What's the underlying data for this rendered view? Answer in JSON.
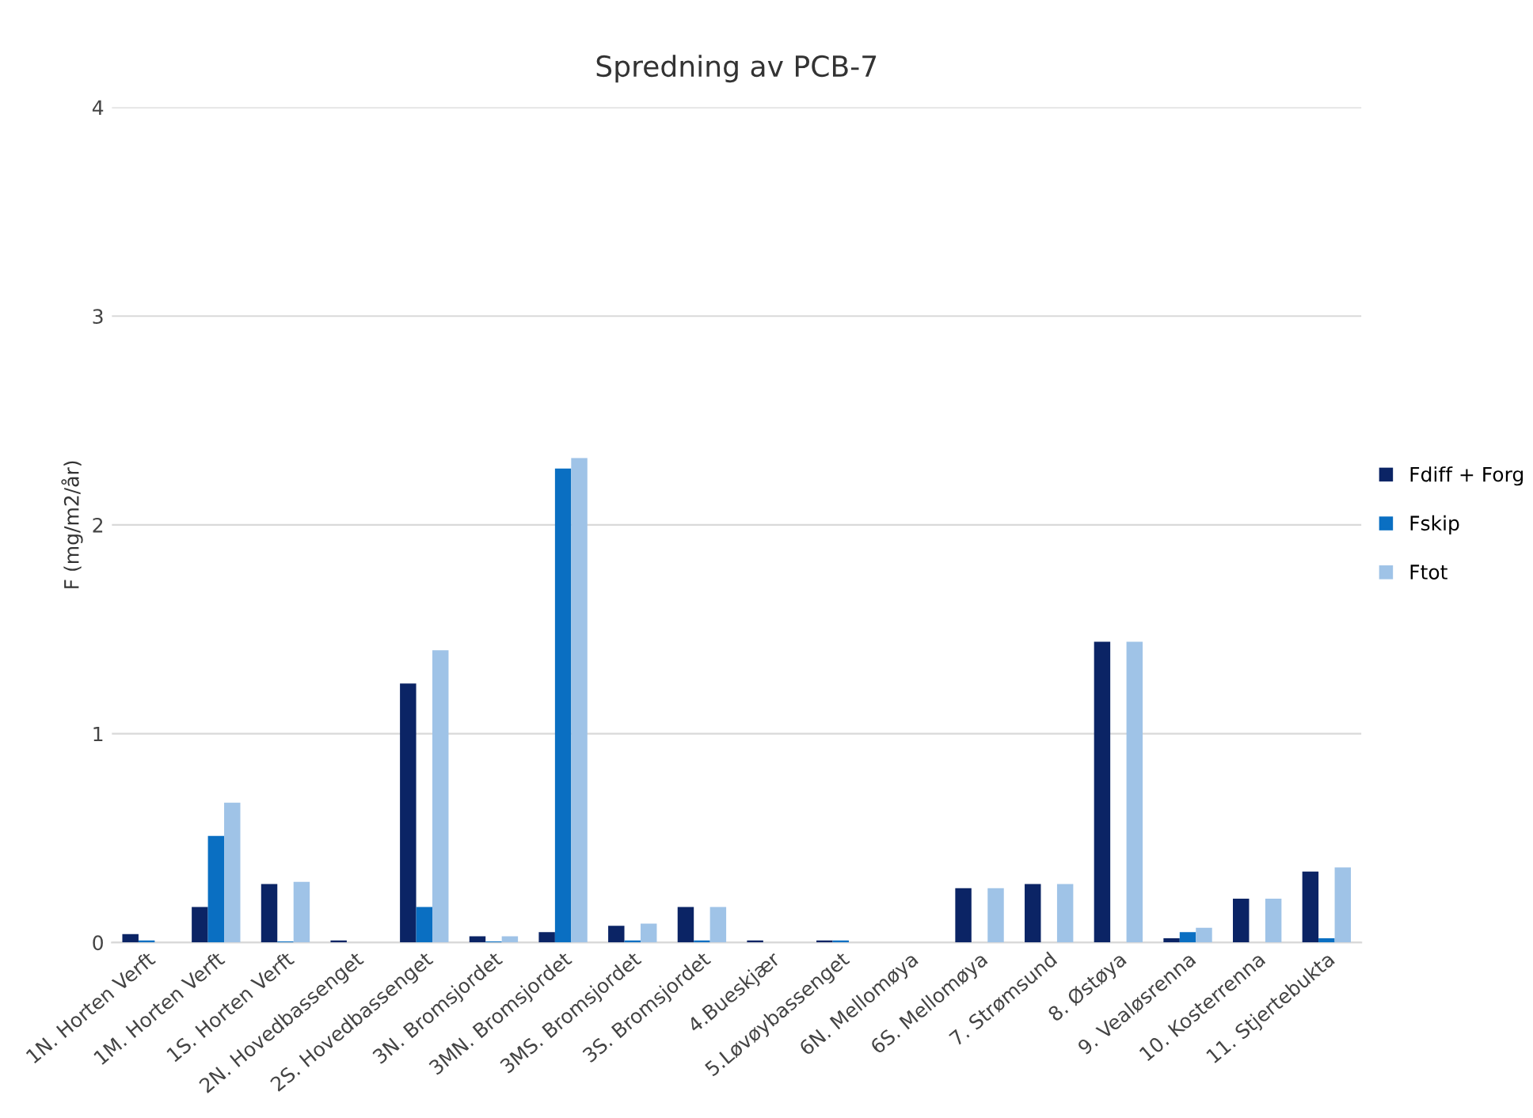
{
  "chart_data": {
    "type": "bar",
    "title": "Spredning av PCB-7",
    "ylabel": "F (mg/m2/år)",
    "categories": [
      "1N. Horten Verft",
      "1M. Horten Verft",
      "1S. Horten Verft",
      "2N. Hovedbassenget",
      "2S. Hovedbassenget",
      "3N. Bromsjordet",
      "3MN. Bromsjordet",
      "3MS. Bromsjordet",
      "3S. Bromsjordet",
      "4.Bueskjær",
      "5.Løvøybassenget",
      "6N. Mellomøya",
      "6S. Mellomøya",
      "7. Strømsund",
      "8. Østøya",
      "9. Vealøsrenna",
      "10. Kosterrenna",
      "11. Stjertebukta"
    ],
    "series": [
      {
        "name": "Fdiff + Forg",
        "color": "#0b2465",
        "values": [
          0.04,
          0.17,
          0.28,
          0.01,
          1.24,
          0.03,
          0.05,
          0.08,
          0.17,
          0.01,
          0.01,
          0,
          0.26,
          0.28,
          1.44,
          0.02,
          0.21,
          0.34
        ]
      },
      {
        "name": "Fskip",
        "color": "#0a6fc2",
        "values": [
          0.01,
          0.51,
          0.005,
          0,
          0.17,
          0.005,
          2.27,
          0.01,
          0.01,
          0,
          0.01,
          0,
          0,
          0,
          0,
          0.05,
          0,
          0.02
        ]
      },
      {
        "name": "Ftot",
        "color": "#9fc3e7",
        "values": [
          null,
          0.67,
          0.29,
          null,
          1.4,
          0.03,
          2.32,
          0.09,
          0.17,
          null,
          null,
          0,
          0.26,
          0.28,
          1.44,
          0.07,
          0.21,
          0.36
        ]
      }
    ],
    "ylim": [
      0,
      4
    ],
    "yticks": [
      0,
      1,
      2,
      3,
      4
    ],
    "grid": "y",
    "legend": "right"
  }
}
